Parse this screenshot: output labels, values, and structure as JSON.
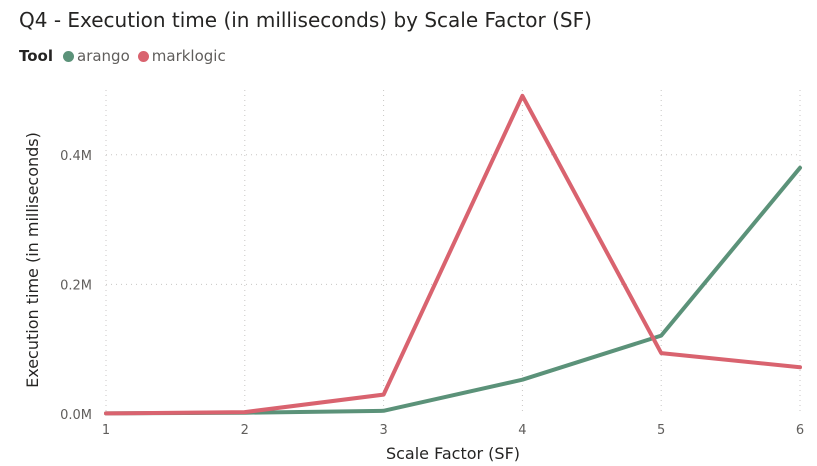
{
  "chart_data": {
    "type": "line",
    "title": "Q4 - Execution time (in milliseconds) by Scale Factor (SF)",
    "legend_title": "Tool",
    "legend_position": "top-left",
    "xlabel": "Scale Factor (SF)",
    "ylabel": "Execution time (in milliseconds)",
    "x": [
      1,
      2,
      3,
      4,
      5,
      6
    ],
    "x_tick_labels": [
      "1",
      "2",
      "3",
      "4",
      "5",
      "6"
    ],
    "y_ticks": [
      0,
      200000,
      400000
    ],
    "y_tick_labels": [
      "0.0M",
      "0.2M",
      "0.4M"
    ],
    "ylim": [
      0,
      500000
    ],
    "grid": true,
    "series": [
      {
        "name": "arango",
        "color": "#5b9279",
        "values": [
          1000,
          2000,
          5000,
          53000,
          121000,
          380000
        ]
      },
      {
        "name": "marklogic",
        "color": "#d9636f",
        "values": [
          1000,
          3000,
          30000,
          491000,
          94000,
          72000
        ]
      }
    ]
  }
}
